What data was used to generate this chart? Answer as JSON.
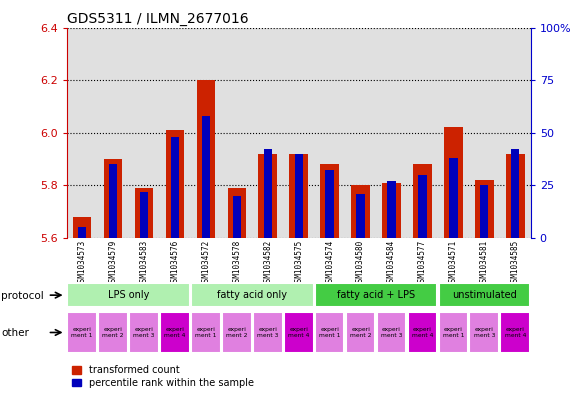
{
  "title": "GDS5311 / ILMN_2677016",
  "samples": [
    "GSM1034573",
    "GSM1034579",
    "GSM1034583",
    "GSM1034576",
    "GSM1034572",
    "GSM1034578",
    "GSM1034582",
    "GSM1034575",
    "GSM1034574",
    "GSM1034580",
    "GSM1034584",
    "GSM1034577",
    "GSM1034571",
    "GSM1034581",
    "GSM1034585"
  ],
  "red_values": [
    5.68,
    5.9,
    5.79,
    6.01,
    6.2,
    5.79,
    5.92,
    5.92,
    5.88,
    5.8,
    5.81,
    5.88,
    6.02,
    5.82,
    5.92
  ],
  "blue_values": [
    5,
    35,
    22,
    48,
    58,
    20,
    42,
    40,
    32,
    21,
    27,
    30,
    38,
    25,
    42
  ],
  "ylim_left": [
    5.6,
    6.4
  ],
  "ylim_right": [
    0,
    100
  ],
  "yticks_left": [
    5.6,
    5.8,
    6.0,
    6.2,
    6.4
  ],
  "yticks_right": [
    0,
    25,
    50,
    75,
    100
  ],
  "protocol_groups": [
    {
      "label": "LPS only",
      "start": 0,
      "end": 4,
      "color_light": "#b8f5b8",
      "color_dark": "#40d040"
    },
    {
      "label": "fatty acid only",
      "start": 4,
      "end": 8,
      "color_light": "#b8f5b8",
      "color_dark": "#40d040"
    },
    {
      "label": "fatty acid + LPS",
      "start": 8,
      "end": 12,
      "color_light": "#40d040",
      "color_dark": "#40d040"
    },
    {
      "label": "unstimulated",
      "start": 12,
      "end": 15,
      "color_light": "#40d040",
      "color_dark": "#40d040"
    }
  ],
  "other_colors_light": "#e080e0",
  "other_colors_dark": "#cc00cc",
  "other_dark_indices": [
    3,
    7,
    11,
    14
  ],
  "other_labels_short": [
    "experi\nment 1",
    "experi\nment 2",
    "experi\nment 3",
    "experi\nment 4",
    "experi\nment 1",
    "experi\nment 2",
    "experi\nment 3",
    "experi\nment 4",
    "experi\nment 1",
    "experi\nment 2",
    "experi\nment 3",
    "experi\nment 4",
    "experi\nment 1",
    "experi\nment 3",
    "experi\nment 4"
  ],
  "bar_color_red": "#cc2200",
  "bar_color_blue": "#0000bb",
  "bar_width": 0.6,
  "bg_chart": "#e0e0e0",
  "bg_xticklabels": "#d0d0d0",
  "tick_color_left": "#cc0000",
  "tick_color_right": "#0000cc",
  "title_fontsize": 10,
  "legend_red_label": "transformed count",
  "legend_blue_label": "percentile rank within the sample"
}
